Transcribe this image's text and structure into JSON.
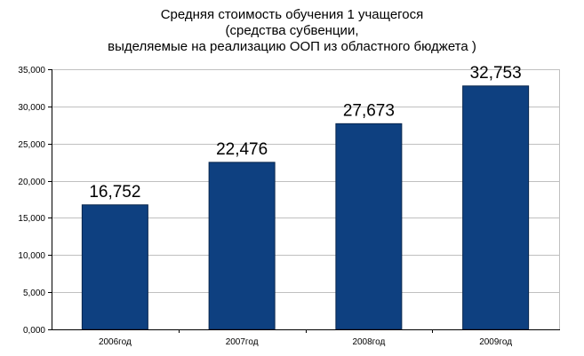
{
  "chart_data": {
    "type": "bar",
    "title_lines": [
      "Средняя стоимость обучения 1 учащегося",
      "(средства субвенции,",
      "выделяемые на реализацию ООП из областного бюджета )"
    ],
    "categories": [
      "2006год",
      "2007год",
      "2008год",
      "2009год"
    ],
    "values": [
      16.752,
      22.476,
      27.673,
      32.753
    ],
    "data_labels": [
      "16,752",
      "22,476",
      "27,673",
      "32,753"
    ],
    "yticks": [
      0,
      5,
      10,
      15,
      20,
      25,
      30,
      35
    ],
    "ytick_labels": [
      "0,000",
      "5,000",
      "10,000",
      "15,000",
      "20,000",
      "25,000",
      "30,000",
      "35,000"
    ],
    "ylim": [
      0,
      35
    ],
    "xlabel": "",
    "ylabel": "",
    "grid": true,
    "legend": false,
    "bar_color": "#0e4080",
    "bar_edge_color": "#08264d",
    "grid_color": "#c0c0c0"
  }
}
